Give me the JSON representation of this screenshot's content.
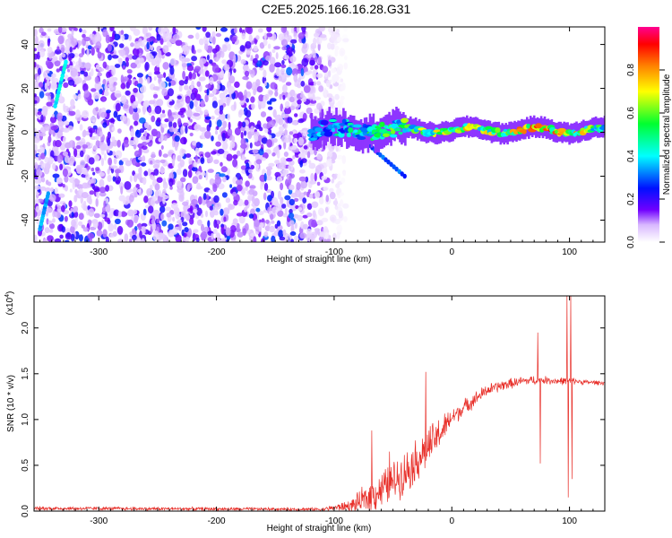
{
  "title": "C2E5.2025.166.16.28.G31",
  "chart_data": [
    {
      "type": "heatmap",
      "xlabel": "Height of straight line (km)",
      "ylabel": "Frequency (Hz)",
      "xlim": [
        -355,
        130
      ],
      "ylim": [
        -50,
        48
      ],
      "xticks": [
        -300,
        -200,
        -100,
        0,
        100
      ],
      "yticks": [
        -40,
        -20,
        0,
        20,
        40
      ],
      "colorbar": {
        "label": "Normalized spectral amplitude",
        "ticks": [
          "0.0",
          "0.2",
          "0.4",
          "0.6",
          "0.8"
        ],
        "tick_values": [
          0.0,
          0.2,
          0.4,
          0.6,
          0.8
        ],
        "range": [
          0,
          1
        ],
        "colors": [
          "#ffffff",
          "#7000ff",
          "#0010ff",
          "#00ffff",
          "#00ff30",
          "#ffff00",
          "#ff8000",
          "#ff0000",
          "#ff0090"
        ]
      },
      "noise_region": {
        "x": [
          -355,
          -105
        ],
        "level": 0.12
      },
      "signal_band": {
        "x": [
          -120,
          130
        ],
        "center_hz": 1,
        "halfwidth_hz": 4,
        "amplitude_track": [
          {
            "x": -120,
            "a": 0.35
          },
          {
            "x": -80,
            "a": 0.45
          },
          {
            "x": -40,
            "a": 0.55
          },
          {
            "x": 0,
            "a": 0.65
          },
          {
            "x": 40,
            "a": 0.6
          },
          {
            "x": 80,
            "a": 0.8
          },
          {
            "x": 130,
            "a": 0.55
          }
        ]
      },
      "features": [
        {
          "name": "rising streak",
          "x": [
            -337,
            -328
          ],
          "y": [
            12,
            32
          ],
          "a": 0.35
        },
        {
          "name": "lower streak",
          "x": [
            -350,
            -343
          ],
          "y": [
            -44,
            -28
          ],
          "a": 0.3
        },
        {
          "name": "falling tail",
          "x": [
            -70,
            -40
          ],
          "y": [
            -6,
            -20
          ],
          "a": 0.25
        }
      ]
    },
    {
      "type": "line",
      "xlabel": "Height of straight line (km)",
      "ylabel": "SNR (10 * v/v)",
      "y_multiplier_label": "(x10",
      "y_multiplier_exp": "4",
      "y_multiplier_close": ")",
      "xlim": [
        -355,
        130
      ],
      "ylim": [
        0,
        2.35
      ],
      "xticks": [
        -300,
        -200,
        -100,
        0,
        100
      ],
      "yticks": [
        "0.0",
        "0.5",
        "1.0",
        "1.5",
        "2.0"
      ],
      "ytick_values": [
        0,
        0.5,
        1.0,
        1.5,
        2.0
      ],
      "color": "#e8302a",
      "envelope": {
        "x": [
          -355,
          -110,
          -85,
          -70,
          -55,
          -40,
          -25,
          -10,
          0,
          15,
          30,
          45,
          60,
          70,
          80,
          90,
          95,
          100,
          105,
          110,
          130
        ],
        "base": [
          0.03,
          0.02,
          0.06,
          0.15,
          0.28,
          0.42,
          0.62,
          0.85,
          1.02,
          1.18,
          1.32,
          1.38,
          1.42,
          1.43,
          1.43,
          1.42,
          1.42,
          1.42,
          1.42,
          1.41,
          1.4
        ],
        "noise": [
          0.025,
          0.02,
          0.08,
          0.22,
          0.25,
          0.28,
          0.28,
          0.22,
          0.12,
          0.1,
          0.08,
          0.07,
          0.06,
          0.06,
          0.05,
          0.05,
          0.05,
          0.05,
          0.04,
          0.03,
          0.03
        ]
      },
      "spikes": [
        {
          "x": -68,
          "y": 0.88
        },
        {
          "x": -53,
          "y": 0.65
        },
        {
          "x": -22,
          "y": 1.52
        },
        {
          "x": 73,
          "y": 1.95
        },
        {
          "x": 75,
          "y": 0.52
        },
        {
          "x": 98,
          "y": 2.35
        },
        {
          "x": 99,
          "y": 0.15
        },
        {
          "x": 101,
          "y": 2.35
        },
        {
          "x": 102,
          "y": 0.35
        }
      ]
    }
  ]
}
